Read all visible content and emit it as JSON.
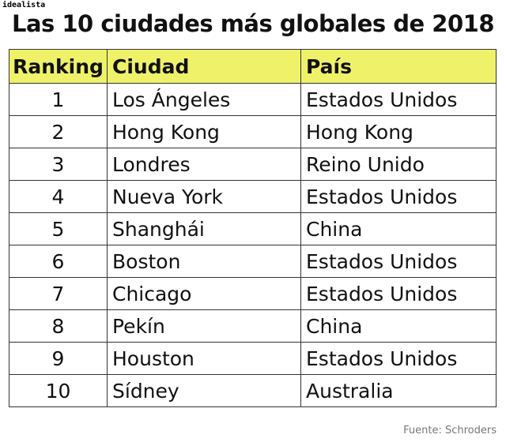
{
  "brand": "idealista",
  "title": "Las 10 ciudades más globales de 2018",
  "source": "Fuente: Schroders",
  "chart_data": {
    "type": "table",
    "title": "Las 10 ciudades más globales de 2018",
    "columns": [
      "Ranking",
      "Ciudad",
      "País"
    ],
    "rows": [
      [
        "1",
        "Los Ángeles",
        "Estados Unidos"
      ],
      [
        "2",
        "Hong Kong",
        "Hong Kong"
      ],
      [
        "3",
        "Londres",
        "Reino Unido"
      ],
      [
        "4",
        "Nueva York",
        "Estados Unidos"
      ],
      [
        "5",
        "Shanghái",
        "China"
      ],
      [
        "6",
        "Boston",
        "Estados Unidos"
      ],
      [
        "7",
        "Chicago",
        "Estados Unidos"
      ],
      [
        "8",
        "Pekín",
        "China"
      ],
      [
        "9",
        "Houston",
        "Estados Unidos"
      ],
      [
        "10",
        "Sídney",
        "Australia"
      ]
    ],
    "header_color": "#eff268"
  }
}
